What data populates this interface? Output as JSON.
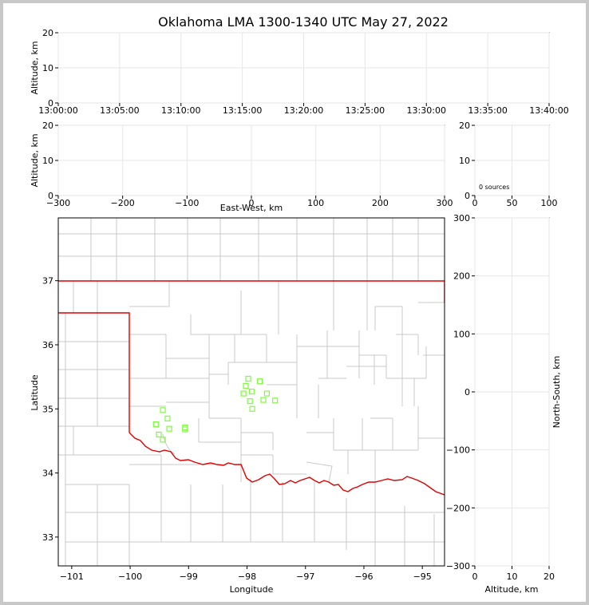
{
  "chart_data": [
    {
      "id": "time-height",
      "type": "scatter",
      "title": "Oklahoma LMA 1300-1340 UTC May 27, 2022",
      "xlabel": "",
      "ylabel": "Altitude, km",
      "xticks": [
        "13:00:00",
        "13:05:00",
        "13:10:00",
        "13:15:00",
        "13:20:00",
        "13:25:00",
        "13:30:00",
        "13:35:00",
        "13:40:00"
      ],
      "xlim_minutes": [
        0,
        40
      ],
      "ylim": [
        0,
        20
      ],
      "yticks": [
        0,
        10,
        20
      ],
      "grid": true,
      "points": []
    },
    {
      "id": "east-west-altitude",
      "type": "scatter",
      "xlabel": "East-West, km",
      "ylabel": "Altitude, km",
      "xlim": [
        -300,
        300
      ],
      "xticks": [
        -300,
        -200,
        -100,
        0,
        100,
        200,
        300
      ],
      "ylim": [
        0,
        20
      ],
      "yticks": [
        0,
        10,
        20
      ],
      "grid": true,
      "points": []
    },
    {
      "id": "altitude-histogram",
      "type": "bar",
      "xlim": [
        0,
        100
      ],
      "xticks": [
        0,
        50,
        100
      ],
      "ylim": [
        0,
        20
      ],
      "yticks": [
        0,
        10,
        20
      ],
      "annotation": "0 sources",
      "grid": true,
      "values": []
    },
    {
      "id": "plan-view",
      "type": "scatter",
      "xlabel": "Longitude",
      "ylabel": "Latitude",
      "xlim": [
        -101.23,
        -94.62
      ],
      "ylim": [
        32.55,
        37.98
      ],
      "xticks": [
        -101,
        -100,
        -99,
        -98,
        -97,
        -96,
        -95
      ],
      "yticks": [
        33,
        34,
        35,
        36,
        37
      ],
      "xtick_labels": [
        "−101",
        "−100",
        "−99",
        "−98",
        "−97",
        "−96",
        "−95"
      ],
      "ytick_labels": [
        "33",
        "34",
        "35",
        "36",
        "37"
      ],
      "stations": [
        {
          "lon": -99.44,
          "lat": 34.98
        },
        {
          "lon": -99.36,
          "lat": 34.85
        },
        {
          "lon": -99.33,
          "lat": 34.69
        },
        {
          "lon": -99.56,
          "lat": 34.76
        },
        {
          "lon": -99.51,
          "lat": 34.6
        },
        {
          "lon": -99.44,
          "lat": 34.52
        },
        {
          "lon": -99.06,
          "lat": 34.71
        },
        {
          "lon": -99.06,
          "lat": 34.68
        },
        {
          "lon": -97.98,
          "lat": 35.47
        },
        {
          "lon": -98.02,
          "lat": 35.36
        },
        {
          "lon": -97.92,
          "lat": 35.27
        },
        {
          "lon": -98.06,
          "lat": 35.24
        },
        {
          "lon": -97.95,
          "lat": 35.12
        },
        {
          "lon": -97.78,
          "lat": 35.43
        },
        {
          "lon": -97.66,
          "lat": 35.24
        },
        {
          "lon": -97.72,
          "lat": 35.14
        },
        {
          "lon": -97.52,
          "lat": 35.13
        },
        {
          "lon": -97.91,
          "lat": 35.0
        }
      ]
    },
    {
      "id": "altitude-north-south",
      "type": "scatter",
      "xlabel": "Altitude, km",
      "ylabel": "North-South, km",
      "xlim": [
        0,
        20
      ],
      "xticks": [
        0,
        10,
        20
      ],
      "ylim": [
        -300,
        300
      ],
      "yticks": [
        -300,
        -200,
        -100,
        0,
        100,
        200,
        300
      ],
      "ytick_labels": [
        "−300",
        "−200",
        "−100",
        "0",
        "100",
        "200",
        "300"
      ],
      "grid": true,
      "points": []
    }
  ]
}
